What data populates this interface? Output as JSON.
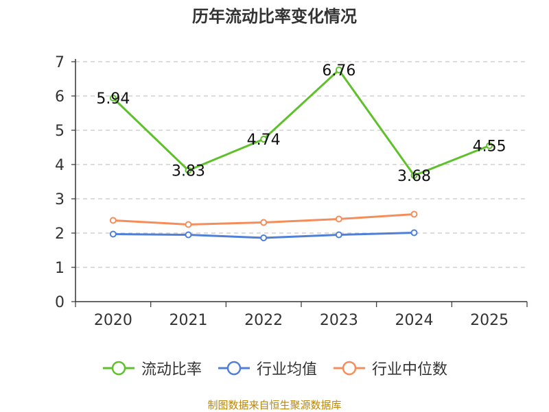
{
  "chart_data": {
    "type": "line",
    "title": "历年流动比率变化情况",
    "categories": [
      "2020",
      "2021",
      "2022",
      "2023",
      "2024",
      "2025"
    ],
    "ylim": [
      0,
      7
    ],
    "yticks": [
      0,
      1,
      2,
      3,
      4,
      5,
      6,
      7
    ],
    "grid": true,
    "legend_position": "bottom",
    "series": [
      {
        "name": "流动比率",
        "color": "#5ec02a",
        "values": [
          5.94,
          3.83,
          4.74,
          6.76,
          3.68,
          4.55
        ],
        "labels": [
          "5.94",
          "3.83",
          "4.74",
          "6.76",
          "3.68",
          "4.55"
        ],
        "show_labels": true
      },
      {
        "name": "行业均值",
        "color": "#4f7fd6",
        "values": [
          1.97,
          1.95,
          1.86,
          1.95,
          2.01,
          null
        ],
        "show_labels": false
      },
      {
        "name": "行业中位数",
        "color": "#f58d5a",
        "values": [
          2.37,
          2.25,
          2.31,
          2.41,
          2.55,
          null
        ],
        "show_labels": false
      }
    ]
  },
  "source_note": "制图数据来自恒生聚源数据库"
}
